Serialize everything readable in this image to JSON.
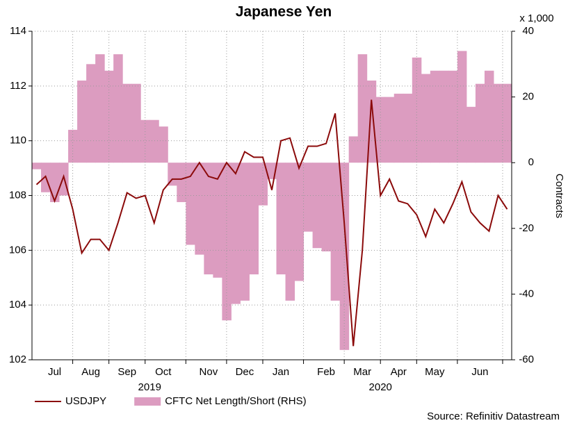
{
  "chart_data": {
    "type": "line-area",
    "title": "Japanese Yen",
    "y2_unit_label": "x 1,000",
    "y2_label": "Contracts",
    "source": "Source: Refinitiv Datastream",
    "categories": [
      null,
      null,
      "Jul",
      null,
      null,
      null,
      "Aug",
      null,
      null,
      null,
      "Sep",
      null,
      null,
      null,
      "Oct",
      null,
      null,
      null,
      null,
      "Nov",
      null,
      null,
      null,
      "Dec",
      null,
      null,
      null,
      "Jan",
      null,
      null,
      null,
      null,
      "Feb",
      null,
      null,
      null,
      "Mar",
      null,
      null,
      null,
      "Apr",
      null,
      null,
      null,
      "May",
      null,
      null,
      null,
      null,
      "Jun",
      null,
      null,
      null
    ],
    "year_labels": [
      "2019",
      "2020"
    ],
    "series": [
      {
        "name": "USDJPY",
        "kind": "line",
        "color": "#8b0a0a",
        "values": [
          108.4,
          108.7,
          107.8,
          108.7,
          107.5,
          105.9,
          106.4,
          106.4,
          106.0,
          107.0,
          108.1,
          107.9,
          108.0,
          107.0,
          108.2,
          108.6,
          108.6,
          108.7,
          109.2,
          108.7,
          108.6,
          109.2,
          108.8,
          109.6,
          109.4,
          109.4,
          108.2,
          110.0,
          110.1,
          109.0,
          109.8,
          109.8,
          109.9,
          111.0,
          107.0,
          102.5,
          106.0,
          111.5,
          108.0,
          108.6,
          107.8,
          107.7,
          107.3,
          106.5,
          107.5,
          107.0,
          107.7,
          108.5,
          107.4,
          107.0,
          106.7,
          108.0,
          107.5
        ]
      },
      {
        "name": "CFTC Net Length/Short (RHS)",
        "kind": "area",
        "axis": "y2",
        "color": "#dc9cc0",
        "values": [
          -2,
          -9,
          -12,
          -10,
          10,
          25,
          30,
          33,
          28,
          33,
          24,
          24,
          13,
          13,
          11,
          -7,
          -12,
          -25,
          -28,
          -34,
          -35,
          -48,
          -43,
          -42,
          -34,
          -13,
          -5,
          -34,
          -42,
          -36,
          -21,
          -26,
          -27,
          -42,
          -57,
          8,
          33,
          25,
          20,
          20,
          21,
          21,
          32,
          27,
          28,
          28,
          28,
          34,
          17,
          24,
          28,
          24,
          24
        ]
      }
    ],
    "ylim": [
      102,
      114
    ],
    "yticks": [
      102,
      104,
      106,
      108,
      110,
      112,
      114
    ],
    "y2lim": [
      -60,
      40
    ],
    "y2ticks": [
      -60,
      -40,
      -20,
      0,
      20,
      40
    ],
    "grid": true,
    "legend": "bottom-left"
  }
}
